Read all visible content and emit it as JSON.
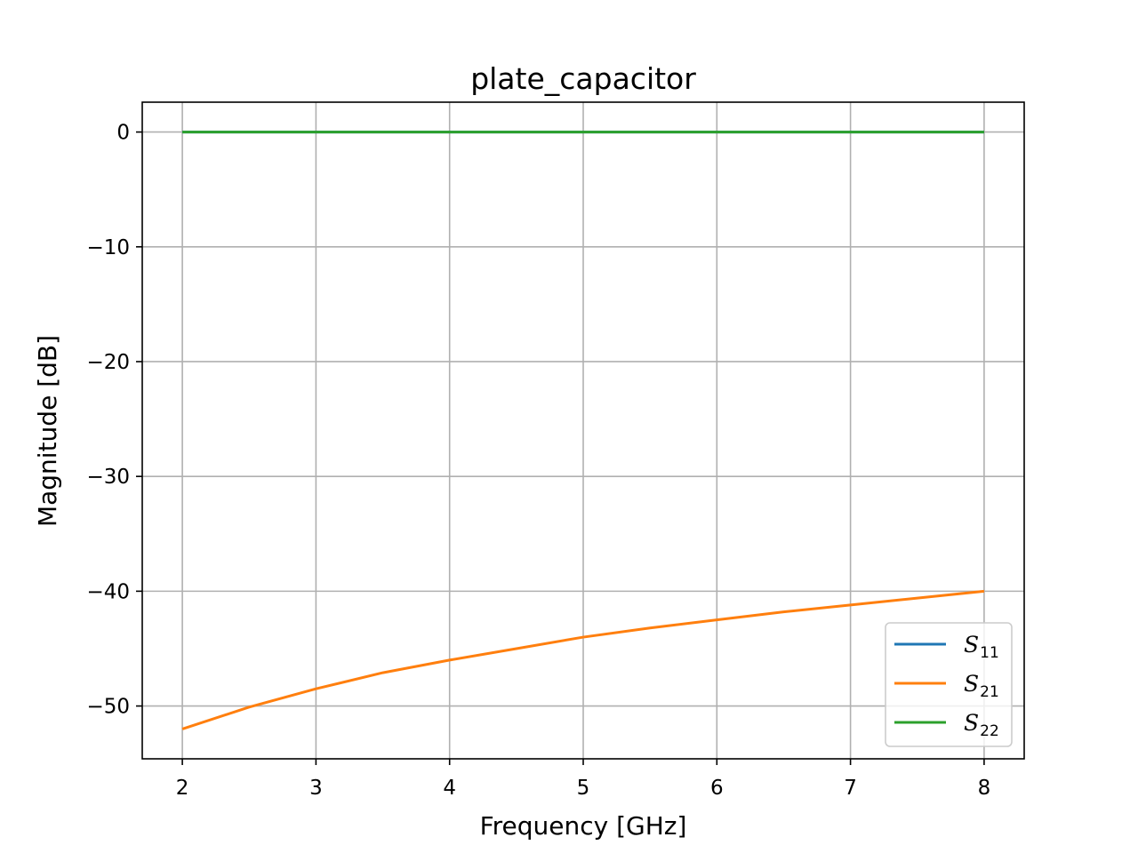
{
  "chart_data": {
    "type": "line",
    "title": "plate_capacitor",
    "xlabel": "Frequency [GHz]",
    "ylabel": "Magnitude [dB]",
    "xlim": [
      1.7,
      8.3
    ],
    "ylim": [
      -54.6,
      2.6
    ],
    "xticks": [
      2,
      3,
      4,
      5,
      6,
      7,
      8
    ],
    "yticks": [
      0,
      -10,
      -20,
      -30,
      -40,
      -50
    ],
    "xtick_labels": [
      "2",
      "3",
      "4",
      "5",
      "6",
      "7",
      "8"
    ],
    "ytick_labels": [
      "0",
      "−10",
      "−20",
      "−30",
      "−40",
      "−50"
    ],
    "grid": true,
    "legend_position": "lower-right",
    "x": [
      2.0,
      2.5,
      3.0,
      3.5,
      4.0,
      4.5,
      5.0,
      5.5,
      6.0,
      6.5,
      7.0,
      7.5,
      8.0
    ],
    "series": [
      {
        "name": "S11",
        "label_main": "S",
        "label_sub": "11",
        "color": "#1f77b4",
        "values": [
          0,
          0,
          0,
          0,
          0,
          0,
          0,
          0,
          0,
          0,
          0,
          0,
          0
        ]
      },
      {
        "name": "S21",
        "label_main": "S",
        "label_sub": "21",
        "color": "#ff7f0e",
        "values": [
          -52.0,
          -50.1,
          -48.5,
          -47.1,
          -46.0,
          -45.0,
          -44.0,
          -43.2,
          -42.5,
          -41.8,
          -41.2,
          -40.6,
          -40.0
        ]
      },
      {
        "name": "S22",
        "label_main": "S",
        "label_sub": "22",
        "color": "#2ca02c",
        "values": [
          0,
          0,
          0,
          0,
          0,
          0,
          0,
          0,
          0,
          0,
          0,
          0,
          0
        ]
      }
    ]
  }
}
